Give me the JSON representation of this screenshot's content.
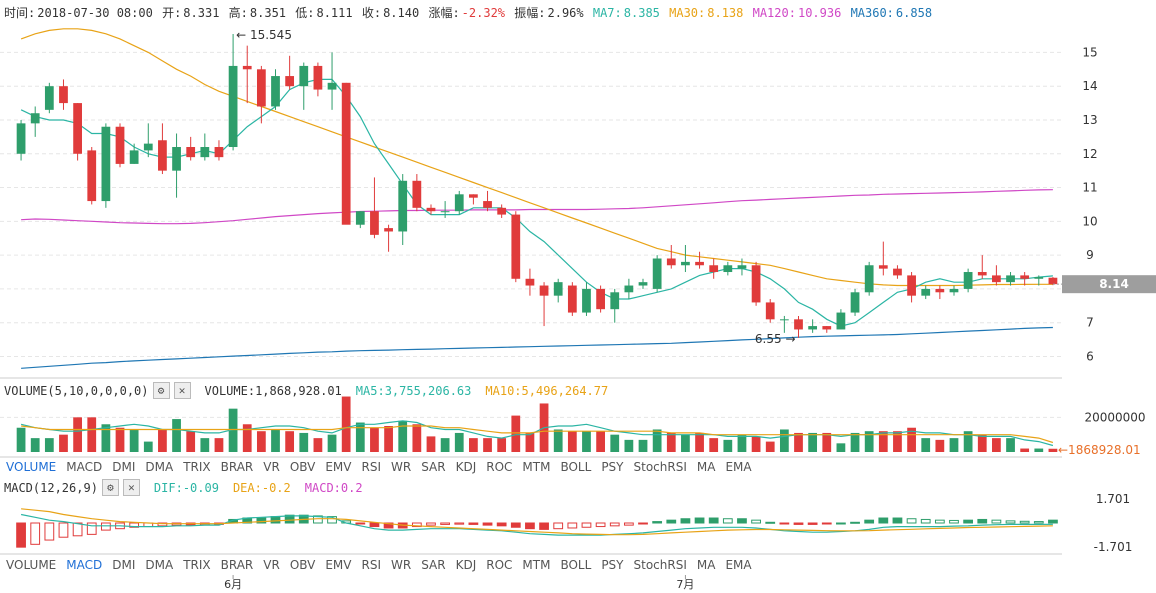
{
  "header": {
    "time_label": "时间:",
    "time": "2018-07-30 08:00",
    "open_label": "开:",
    "open": "8.331",
    "high_label": "高:",
    "high": "8.351",
    "low_label": "低:",
    "low": "8.111",
    "close_label": "收:",
    "close": "8.140",
    "change_label": "涨幅:",
    "change": "-2.32%",
    "amp_label": "振幅:",
    "amp": "2.96%",
    "ma7_label": "MA7:",
    "ma7": "8.385",
    "ma30_label": "MA30:",
    "ma30": "8.138",
    "ma120_label": "MA120:",
    "ma120": "10.936",
    "ma360_label": "MA360:",
    "ma360": "6.858"
  },
  "volume_header": {
    "title": "VOLUME(5,10,0,0,0,0)",
    "vol_label": "VOLUME:",
    "vol": "1,868,928.01",
    "ma5_label": "MA5:",
    "ma5": "3,755,206.63",
    "ma10_label": "MA10:",
    "ma10": "5,496,264.77",
    "gear_icon": "gear-icon",
    "close_icon": "close-icon"
  },
  "macd_header": {
    "title": "MACD(12,26,9)",
    "dif_label": "DIF:",
    "dif": "-0.09",
    "dea_label": "DEA:",
    "dea": "-0.2",
    "macd_label": "MACD:",
    "macd": "0.2",
    "gear_icon": "gear-icon",
    "close_icon": "close-icon"
  },
  "indicator_tabs_1": [
    "VOLUME",
    "MACD",
    "DMI",
    "DMA",
    "TRIX",
    "BRAR",
    "VR",
    "OBV",
    "EMV",
    "RSI",
    "WR",
    "SAR",
    "KDJ",
    "ROC",
    "MTM",
    "BOLL",
    "PSY",
    "StochRSI",
    "MA",
    "EMA"
  ],
  "indicator_tabs_1_active": "VOLUME",
  "indicator_tabs_2": [
    "VOLUME",
    "MACD",
    "DMI",
    "DMA",
    "TRIX",
    "BRAR",
    "VR",
    "OBV",
    "EMV",
    "RSI",
    "WR",
    "SAR",
    "KDJ",
    "ROC",
    "MTM",
    "BOLL",
    "PSY",
    "StochRSI",
    "MA",
    "EMA"
  ],
  "indicator_tabs_2_active": "MACD",
  "colors": {
    "up": "#2e9e6b",
    "down": "#e03b3b",
    "ma7": "#2bb5a4",
    "ma30": "#e8a317",
    "ma120": "#d048c6",
    "ma360": "#1f77b4"
  },
  "chart_data": {
    "type": "candlestick",
    "price_ticks": [
      6,
      7,
      8,
      9,
      10,
      11,
      12,
      13,
      14,
      15
    ],
    "price_range": [
      5.6,
      15.9
    ],
    "current_price_label": "8.14",
    "max_annotation": "15.545",
    "min_annotation": "6.55",
    "candles": [
      [
        12.0,
        12.9,
        13.0,
        11.8
      ],
      [
        12.9,
        13.2,
        13.4,
        12.5
      ],
      [
        13.3,
        14.0,
        14.1,
        13.2
      ],
      [
        14.0,
        13.5,
        14.2,
        13.3
      ],
      [
        13.5,
        12.0,
        13.5,
        11.8
      ],
      [
        12.1,
        10.6,
        12.2,
        10.5
      ],
      [
        10.6,
        12.8,
        12.9,
        10.4
      ],
      [
        12.8,
        11.7,
        12.9,
        11.6
      ],
      [
        11.7,
        12.1,
        12.3,
        11.7
      ],
      [
        12.1,
        12.3,
        12.9,
        11.9
      ],
      [
        12.4,
        11.5,
        12.9,
        11.4
      ],
      [
        11.5,
        12.2,
        12.6,
        10.7
      ],
      [
        12.2,
        11.9,
        12.5,
        11.8
      ],
      [
        11.9,
        12.2,
        12.6,
        11.8
      ],
      [
        12.2,
        11.9,
        12.4,
        11.8
      ],
      [
        12.2,
        14.6,
        15.545,
        12.1
      ],
      [
        14.6,
        14.5,
        15.2,
        13.5
      ],
      [
        14.5,
        13.4,
        14.6,
        12.9
      ],
      [
        13.4,
        14.3,
        14.5,
        13.3
      ],
      [
        14.3,
        14.0,
        14.9,
        13.9
      ],
      [
        14.0,
        14.6,
        14.7,
        13.3
      ],
      [
        14.6,
        13.9,
        14.7,
        13.7
      ],
      [
        13.9,
        14.1,
        15.0,
        13.3
      ],
      [
        14.1,
        9.9,
        14.1,
        10.0
      ],
      [
        9.9,
        10.3,
        10.3,
        9.8
      ],
      [
        10.3,
        9.6,
        11.3,
        9.5
      ],
      [
        9.8,
        9.7,
        9.9,
        9.1
      ],
      [
        9.7,
        11.2,
        11.4,
        9.3
      ],
      [
        11.2,
        10.4,
        11.4,
        10.3
      ],
      [
        10.4,
        10.3,
        10.5,
        10.2
      ],
      [
        10.3,
        10.3,
        10.6,
        10.1
      ],
      [
        10.3,
        10.8,
        10.9,
        10.2
      ],
      [
        10.8,
        10.7,
        10.8,
        10.5
      ],
      [
        10.6,
        10.4,
        10.9,
        10.3
      ],
      [
        10.4,
        10.2,
        10.5,
        10.1
      ],
      [
        10.2,
        8.3,
        10.3,
        8.2
      ],
      [
        8.3,
        8.1,
        8.6,
        7.8
      ],
      [
        8.1,
        7.8,
        8.2,
        6.9
      ],
      [
        7.8,
        8.2,
        8.3,
        7.6
      ],
      [
        8.1,
        7.3,
        8.2,
        7.2
      ],
      [
        7.3,
        8.0,
        8.2,
        7.2
      ],
      [
        8.0,
        7.4,
        8.1,
        7.3
      ],
      [
        7.4,
        7.9,
        8.0,
        7.0
      ],
      [
        7.9,
        8.1,
        8.3,
        7.7
      ],
      [
        8.1,
        8.2,
        8.3,
        8.0
      ],
      [
        8.0,
        8.9,
        9.0,
        7.9
      ],
      [
        8.9,
        8.7,
        9.3,
        8.6
      ],
      [
        8.7,
        8.8,
        9.3,
        8.5
      ],
      [
        8.8,
        8.7,
        9.1,
        8.6
      ],
      [
        8.7,
        8.5,
        8.9,
        8.3
      ],
      [
        8.5,
        8.7,
        8.8,
        8.4
      ],
      [
        8.6,
        8.7,
        8.9,
        8.4
      ],
      [
        8.7,
        7.6,
        8.8,
        7.5
      ],
      [
        7.6,
        7.1,
        7.7,
        7.0
      ],
      [
        7.1,
        7.1,
        7.2,
        6.7
      ],
      [
        7.1,
        6.8,
        7.2,
        6.55
      ],
      [
        6.8,
        6.9,
        7.1,
        6.7
      ],
      [
        6.9,
        6.8,
        6.9,
        6.7
      ],
      [
        6.8,
        7.3,
        7.4,
        6.8
      ],
      [
        7.3,
        7.9,
        8.0,
        7.2
      ],
      [
        7.9,
        8.7,
        8.8,
        7.8
      ],
      [
        8.7,
        8.6,
        9.4,
        8.4
      ],
      [
        8.6,
        8.4,
        8.7,
        8.3
      ],
      [
        8.4,
        7.8,
        8.5,
        7.6
      ],
      [
        7.8,
        8.0,
        8.1,
        7.7
      ],
      [
        8.0,
        7.9,
        8.1,
        7.7
      ],
      [
        7.9,
        8.0,
        8.1,
        7.8
      ],
      [
        8.0,
        8.5,
        8.6,
        7.9
      ],
      [
        8.5,
        8.4,
        9.0,
        8.3
      ],
      [
        8.4,
        8.2,
        8.7,
        8.1
      ],
      [
        8.2,
        8.4,
        8.5,
        8.1
      ],
      [
        8.4,
        8.3,
        8.5,
        8.1
      ],
      [
        8.3,
        8.35,
        8.4,
        8.1
      ],
      [
        8.331,
        8.14,
        8.351,
        8.111
      ]
    ],
    "ma7": [
      13.3,
      13.1,
      13.0,
      13.0,
      12.9,
      12.6,
      12.6,
      12.5,
      12.2,
      12.0,
      11.9,
      11.9,
      12.0,
      12.1,
      12.0,
      12.4,
      12.8,
      13.1,
      13.4,
      13.9,
      14.1,
      14.2,
      14.2,
      13.7,
      13.1,
      12.3,
      11.7,
      11.1,
      10.5,
      10.2,
      10.2,
      10.2,
      10.4,
      10.4,
      10.4,
      10.1,
      9.7,
      9.4,
      9.0,
      8.6,
      8.2,
      7.9,
      7.7,
      7.7,
      7.8,
      7.9,
      8.0,
      8.2,
      8.4,
      8.5,
      8.6,
      8.6,
      8.5,
      8.3,
      8.0,
      7.6,
      7.4,
      7.1,
      6.9,
      7.0,
      7.3,
      7.6,
      7.9,
      8.0,
      8.2,
      8.3,
      8.2,
      8.2,
      8.3,
      8.3,
      8.3,
      8.3,
      8.35,
      8.385
    ],
    "ma30": [
      15.4,
      15.55,
      15.65,
      15.7,
      15.7,
      15.65,
      15.55,
      15.4,
      15.2,
      15.0,
      14.75,
      14.5,
      14.3,
      14.05,
      13.85,
      13.7,
      13.55,
      13.4,
      13.25,
      13.1,
      12.95,
      12.8,
      12.65,
      12.5,
      12.35,
      12.2,
      12.05,
      11.9,
      11.75,
      11.6,
      11.45,
      11.3,
      11.15,
      11.0,
      10.85,
      10.7,
      10.55,
      10.4,
      10.25,
      10.1,
      9.95,
      9.8,
      9.65,
      9.5,
      9.35,
      9.2,
      9.1,
      9.0,
      8.95,
      8.9,
      8.85,
      8.8,
      8.75,
      8.7,
      8.6,
      8.5,
      8.4,
      8.3,
      8.25,
      8.2,
      8.15,
      8.12,
      8.1,
      8.1,
      8.1,
      8.1,
      8.1,
      8.11,
      8.12,
      8.13,
      8.13,
      8.135,
      8.137,
      8.138
    ],
    "ma120": [
      10.05,
      10.07,
      10.06,
      10.04,
      10.02,
      10.0,
      9.98,
      9.96,
      9.95,
      9.94,
      9.93,
      9.93,
      9.94,
      9.96,
      9.99,
      10.02,
      10.06,
      10.1,
      10.14,
      10.17,
      10.2,
      10.23,
      10.25,
      10.27,
      10.29,
      10.3,
      10.31,
      10.32,
      10.32,
      10.33,
      10.33,
      10.33,
      10.34,
      10.34,
      10.34,
      10.34,
      10.35,
      10.35,
      10.35,
      10.35,
      10.35,
      10.36,
      10.37,
      10.38,
      10.4,
      10.43,
      10.46,
      10.49,
      10.52,
      10.55,
      10.58,
      10.61,
      10.63,
      10.65,
      10.67,
      10.69,
      10.71,
      10.73,
      10.75,
      10.77,
      10.78,
      10.8,
      10.81,
      10.82,
      10.83,
      10.84,
      10.85,
      10.86,
      10.87,
      10.89,
      10.9,
      10.92,
      10.93,
      10.936
    ],
    "ma360": [
      5.65,
      5.68,
      5.71,
      5.74,
      5.77,
      5.8,
      5.82,
      5.85,
      5.87,
      5.89,
      5.91,
      5.93,
      5.95,
      5.97,
      5.99,
      6.01,
      6.03,
      6.05,
      6.07,
      6.09,
      6.11,
      6.13,
      6.14,
      6.16,
      6.17,
      6.18,
      6.19,
      6.2,
      6.21,
      6.22,
      6.23,
      6.24,
      6.25,
      6.26,
      6.27,
      6.28,
      6.29,
      6.3,
      6.31,
      6.32,
      6.33,
      6.34,
      6.35,
      6.36,
      6.37,
      6.38,
      6.39,
      6.41,
      6.43,
      6.45,
      6.47,
      6.49,
      6.51,
      6.53,
      6.55,
      6.57,
      6.59,
      6.6,
      6.61,
      6.62,
      6.63,
      6.64,
      6.65,
      6.67,
      6.69,
      6.71,
      6.73,
      6.75,
      6.77,
      6.79,
      6.81,
      6.83,
      6.845,
      6.858
    ],
    "volume_tick": "20000000",
    "volume_range": [
      0,
      30000000
    ],
    "volume_current_label": "1868928.01",
    "volume": [
      14000000.0,
      8000000.0,
      8000000.0,
      10000000.0,
      20000000.0,
      20000000.0,
      16000000.0,
      14000000.0,
      13000000.0,
      6000000.0,
      13000000.0,
      19000000.0,
      12000000.0,
      8000000.0,
      8000000.0,
      25000000.0,
      16000000.0,
      12000000.0,
      13000000.0,
      12000000.0,
      11000000.0,
      8000000.0,
      10000000.0,
      32000000.0,
      17000000.0,
      14000000.0,
      15000000.0,
      18000000.0,
      16000000.0,
      9000000.0,
      8000000.0,
      11000000.0,
      8000000.0,
      8000000.0,
      8000000.0,
      21000000.0,
      11000000.0,
      28000000.0,
      13000000.0,
      12000000.0,
      12000000.0,
      12000000.0,
      10000000.0,
      7000000.0,
      7000000.0,
      13000000.0,
      11000000.0,
      10000000.0,
      11000000.0,
      8000000.0,
      7000000.0,
      10000000.0,
      9000000.0,
      6000000.0,
      13000000.0,
      11000000.0,
      11000000.0,
      11000000.0,
      5000000.0,
      11000000.0,
      12000000.0,
      12000000.0,
      12000000.0,
      14000000.0,
      8000000.0,
      7000000.0,
      8000000.0,
      12000000.0,
      10000000.0,
      8000000.0,
      8000000.0,
      2000000.0,
      2000000.0,
      1868928.01
    ],
    "vol_ma5": [
      16000000.0,
      14000000.0,
      13000000.0,
      12000000.0,
      12000000.0,
      13000000.0,
      14000000.0,
      15000000.0,
      16000000.0,
      15000000.0,
      13000000.0,
      13000000.0,
      12000000.0,
      11000000.0,
      11000000.0,
      13000000.0,
      13000000.0,
      14000000.0,
      15000000.0,
      15000000.0,
      14000000.0,
      12000000.0,
      11000000.0,
      14000000.0,
      16000000.0,
      16000000.0,
      17000000.0,
      18000000.0,
      17000000.0,
      14000000.0,
      13000000.0,
      13000000.0,
      11000000.0,
      9000000.0,
      8000000.0,
      10000000.0,
      10000000.0,
      14000000.0,
      15000000.0,
      15000000.0,
      16000000.0,
      14000000.0,
      12000000.0,
      11000000.0,
      10000000.0,
      10000000.0,
      10000000.0,
      10000000.0,
      10000000.0,
      10000000.0,
      9000000.0,
      9000000.0,
      9000000.0,
      8000000.0,
      9000000.0,
      10000000.0,
      10000000.0,
      10000000.0,
      9000000.0,
      10000000.0,
      10000000.0,
      11000000.0,
      11000000.0,
      12000000.0,
      11000000.0,
      11000000.0,
      10000000.0,
      10000000.0,
      9000000.0,
      9000000.0,
      9000000.0,
      7000000.0,
      6000000.0,
      3755206.63
    ],
    "vol_ma10": [
      15000000.0,
      14000000.0,
      13000000.0,
      13000000.0,
      13000000.0,
      13000000.0,
      13000000.0,
      13000000.0,
      13000000.0,
      13000000.0,
      13000000.0,
      13000000.0,
      13000000.0,
      13000000.0,
      13000000.0,
      13000000.0,
      13000000.0,
      13000000.0,
      13000000.0,
      13000000.0,
      13000000.0,
      13000000.0,
      13000000.0,
      14000000.0,
      14000000.0,
      14000000.0,
      14000000.0,
      15000000.0,
      15000000.0,
      15000000.0,
      14000000.0,
      14000000.0,
      13000000.0,
      12000000.0,
      11000000.0,
      11000000.0,
      11000000.0,
      12000000.0,
      12000000.0,
      12000000.0,
      12000000.0,
      12000000.0,
      12000000.0,
      12000000.0,
      12000000.0,
      12000000.0,
      11000000.0,
      11000000.0,
      11000000.0,
      10000000.0,
      10000000.0,
      10000000.0,
      10000000.0,
      10000000.0,
      10000000.0,
      10000000.0,
      10000000.0,
      10000000.0,
      10000000.0,
      10000000.0,
      10000000.0,
      10000000.0,
      10000000.0,
      10000000.0,
      10000000.0,
      10000000.0,
      10000000.0,
      10000000.0,
      10000000.0,
      10000000.0,
      10000000.0,
      9000000.0,
      8000000.0,
      5496264.77
    ],
    "macd_ticks": [
      "1.701",
      "-1.701"
    ],
    "macd_range": [
      -1.9,
      1.9
    ],
    "macd_hist": [
      -1.7,
      -1.5,
      -1.2,
      -1.0,
      -0.9,
      -0.8,
      -0.5,
      -0.4,
      -0.3,
      -0.25,
      -0.2,
      -0.15,
      -0.15,
      -0.12,
      -0.1,
      0.25,
      0.35,
      0.35,
      0.45,
      0.55,
      0.55,
      0.5,
      0.45,
      0.15,
      -0.05,
      -0.25,
      -0.35,
      -0.35,
      -0.25,
      -0.15,
      -0.1,
      -0.08,
      -0.1,
      -0.15,
      -0.2,
      -0.3,
      -0.4,
      -0.45,
      -0.4,
      -0.35,
      -0.3,
      -0.25,
      -0.2,
      -0.15,
      -0.05,
      0.1,
      0.2,
      0.3,
      0.35,
      0.35,
      0.3,
      0.3,
      0.2,
      0.05,
      -0.05,
      -0.1,
      -0.1,
      -0.05,
      0.0,
      0.05,
      0.2,
      0.35,
      0.35,
      0.3,
      0.25,
      0.2,
      0.18,
      0.2,
      0.25,
      0.2,
      0.15,
      0.12,
      0.1,
      0.2
    ],
    "macd_dif": [
      0.6,
      0.4,
      0.2,
      0.1,
      -0.05,
      -0.2,
      -0.2,
      -0.2,
      -0.25,
      -0.25,
      -0.25,
      -0.2,
      -0.2,
      -0.15,
      -0.15,
      0.2,
      0.35,
      0.4,
      0.45,
      0.5,
      0.5,
      0.45,
      0.4,
      0.0,
      -0.2,
      -0.4,
      -0.5,
      -0.5,
      -0.45,
      -0.4,
      -0.4,
      -0.4,
      -0.45,
      -0.5,
      -0.55,
      -0.65,
      -0.75,
      -0.8,
      -0.85,
      -0.85,
      -0.85,
      -0.85,
      -0.8,
      -0.75,
      -0.7,
      -0.6,
      -0.5,
      -0.4,
      -0.35,
      -0.3,
      -0.3,
      -0.3,
      -0.35,
      -0.45,
      -0.55,
      -0.6,
      -0.65,
      -0.65,
      -0.6,
      -0.55,
      -0.45,
      -0.3,
      -0.25,
      -0.25,
      -0.25,
      -0.25,
      -0.22,
      -0.2,
      -0.15,
      -0.12,
      -0.1,
      -0.1,
      -0.1,
      -0.09
    ],
    "macd_dea": [
      1.0,
      0.9,
      0.8,
      0.6,
      0.45,
      0.3,
      0.2,
      0.1,
      0.05,
      0.0,
      -0.05,
      -0.05,
      -0.05,
      -0.05,
      -0.05,
      0.0,
      0.05,
      0.1,
      0.15,
      0.2,
      0.25,
      0.3,
      0.3,
      0.25,
      0.15,
      0.05,
      -0.05,
      -0.15,
      -0.2,
      -0.25,
      -0.3,
      -0.35,
      -0.4,
      -0.45,
      -0.5,
      -0.55,
      -0.6,
      -0.65,
      -0.7,
      -0.75,
      -0.78,
      -0.8,
      -0.82,
      -0.82,
      -0.8,
      -0.75,
      -0.7,
      -0.65,
      -0.6,
      -0.55,
      -0.5,
      -0.48,
      -0.46,
      -0.46,
      -0.48,
      -0.5,
      -0.52,
      -0.54,
      -0.55,
      -0.55,
      -0.54,
      -0.5,
      -0.47,
      -0.44,
      -0.41,
      -0.38,
      -0.35,
      -0.32,
      -0.3,
      -0.28,
      -0.26,
      -0.24,
      -0.22,
      -0.2
    ],
    "x_labels": [
      {
        "index": 15,
        "label": "6月"
      },
      {
        "index": 47,
        "label": "7月"
      }
    ]
  }
}
